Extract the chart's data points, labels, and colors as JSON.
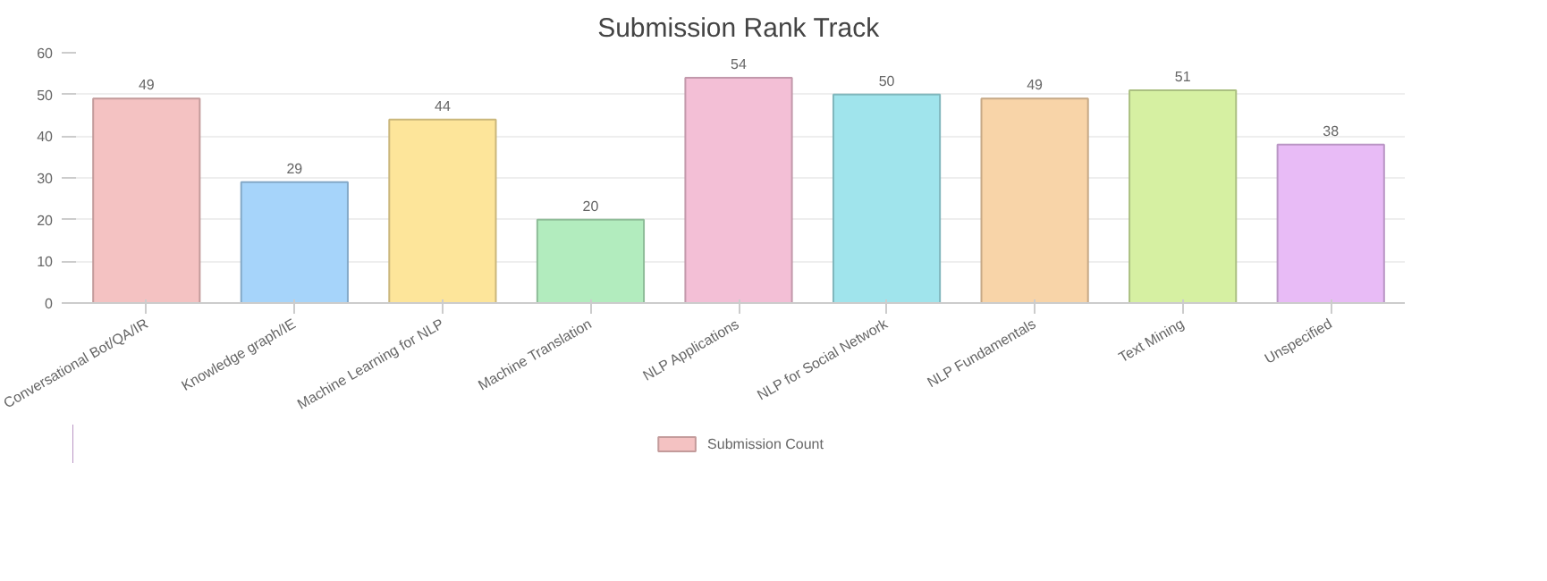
{
  "chart_data": {
    "type": "bar",
    "title": "Submission Rank Track",
    "categories": [
      "Conversational Bot/QA/IR",
      "Knowledge graph/IE",
      "Machine Learning for NLP",
      "Machine Translation",
      "NLP Applications",
      "NLP for Social Network",
      "NLP Fundamentals",
      "Text Mining",
      "Unspecified"
    ],
    "series": [
      {
        "name": "Submission Count",
        "values": [
          49,
          29,
          44,
          20,
          54,
          50,
          49,
          51,
          38
        ],
        "colors": [
          "#f4c2c2",
          "#a6d4fa",
          "#fde59a",
          "#b2ecbe",
          "#f3bfd6",
          "#a0e4ec",
          "#f8d4a8",
          "#d6f0a2",
          "#e8bbf6"
        ]
      }
    ],
    "ylim": [
      0,
      60
    ],
    "yticks": [
      0,
      10,
      20,
      30,
      40,
      50,
      60
    ],
    "grid": "y",
    "data_labels": true,
    "legend": "bottom"
  }
}
